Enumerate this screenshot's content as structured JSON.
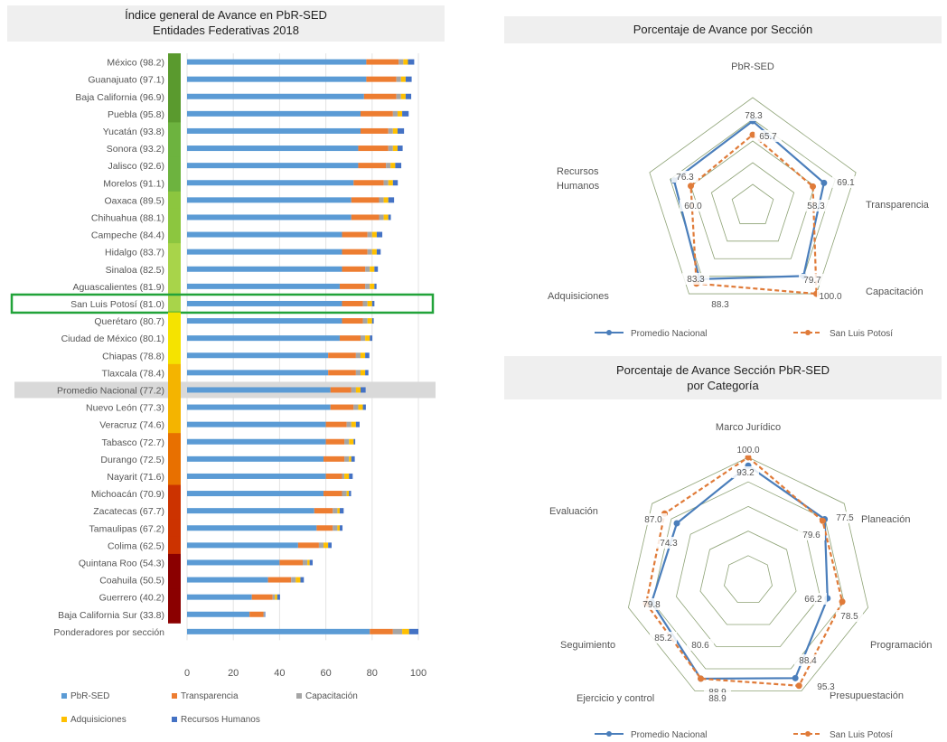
{
  "bar_chart": {
    "title_line1": "Índice general de Avance en PbR-SED",
    "title_line2": "Entidades Federativas 2018",
    "x_ticks": [
      "0",
      "20",
      "40",
      "60",
      "80",
      "100"
    ],
    "legend": [
      "PbR-SED",
      "Transparencia",
      "Capacitación",
      "Adquisiciones",
      "Recursos Humanos"
    ],
    "colors": {
      "PbR-SED": "#5b9bd5",
      "Transparencia": "#ed7d31",
      "Capacitación": "#a5a5a5",
      "Adquisiciones": "#ffc000",
      "Recursos Humanos": "#4472c4"
    }
  },
  "chart_data": [
    {
      "type": "bar",
      "orientation": "horizontal",
      "stacked": true,
      "xlim": [
        0,
        100
      ],
      "categories": [
        "México (98.2)",
        "Guanajuato (97.1)",
        "Baja California (96.9)",
        "Puebla (95.8)",
        "Yucatán (93.8)",
        "Sonora (93.2)",
        "Jalisco (92.6)",
        "Morelos (91.1)",
        "Oaxaca (89.5)",
        "Chihuahua (88.1)",
        "Campeche (84.4)",
        "Hidalgo (83.7)",
        "Sinaloa (82.5)",
        "Aguascalientes (81.9)",
        "San Luis Potosí (81.0)",
        "Querétaro (80.7)",
        "Ciudad de México (80.1)",
        "Chiapas (78.8)",
        "Tlaxcala (78.4)",
        "Promedio Nacional (77.2)",
        "Nuevo León (77.3)",
        "Veracruz (74.6)",
        "Tabasco (72.7)",
        "Durango (72.5)",
        "Nayarit (71.6)",
        "Michoacán (70.9)",
        "Zacatecas (67.7)",
        "Tamaulipas (67.2)",
        "Colima (62.5)",
        "Quintana Roo (54.3)",
        "Coahuila (50.5)",
        "Guerrero (40.2)",
        "Baja California Sur (33.8)",
        "Ponderadores por sección"
      ],
      "series": [
        {
          "name": "PbR-SED",
          "values": [
            77.5,
            77.5,
            76.5,
            75,
            75,
            74,
            74,
            72,
            71,
            71,
            67,
            67,
            67,
            66,
            67,
            67,
            66,
            61,
            61,
            62,
            62,
            60,
            60,
            59,
            60,
            59,
            55,
            56,
            48,
            40,
            35,
            28,
            27,
            79
          ]
        },
        {
          "name": "Transparencia",
          "values": [
            14,
            13,
            14,
            14,
            12,
            13,
            12,
            13,
            12,
            12,
            11,
            11,
            10,
            11,
            9,
            9,
            9,
            12,
            12,
            9,
            10,
            9,
            8,
            9,
            7,
            8,
            8,
            7,
            9,
            10,
            10,
            9,
            6,
            10
          ]
        },
        {
          "name": "Capacitación",
          "values": [
            2,
            2,
            2,
            2,
            2,
            2,
            2,
            2,
            2,
            2,
            2,
            2,
            2,
            2,
            2,
            2,
            2,
            2,
            2,
            2,
            2,
            2,
            2,
            2,
            1,
            2,
            2,
            2,
            2,
            2,
            2,
            1,
            0.5,
            4
          ]
        },
        {
          "name": "Adquisiciones",
          "values": [
            2,
            2,
            2,
            2,
            2,
            2,
            2,
            2,
            2,
            2,
            2,
            2,
            2,
            2,
            2,
            2,
            2,
            2,
            2,
            2,
            2,
            2,
            2,
            1,
            2,
            1,
            1,
            1,
            2,
            1,
            2,
            1,
            0,
            3
          ]
        },
        {
          "name": "Recursos Humanos",
          "values": [
            2.7,
            2.6,
            2.4,
            2.8,
            2.8,
            2.2,
            2.6,
            2.1,
            2.5,
            1.1,
            2.4,
            1.7,
            1.5,
            0.9,
            1,
            0.7,
            1.1,
            1.8,
            1.4,
            2.2,
            1.3,
            1.6,
            0.7,
            1.5,
            1.6,
            0.9,
            1.7,
            1.2,
            1.5,
            1.3,
            1.5,
            1.2,
            0.3,
            4
          ]
        }
      ],
      "color_scale": [
        "#5a9a2e",
        "#6db33f",
        "#8cc63f",
        "#a8d44a",
        "#f5e300",
        "#f4b400",
        "#e87000",
        "#cc3300",
        "#8b0000"
      ],
      "highlight": {
        "category": "San Luis Potosí (81.0)",
        "outline_color": "#22a33a"
      },
      "shaded_category": "Promedio Nacional (77.2)"
    },
    {
      "type": "radar",
      "title": "Porcentaje de Avance por Sección",
      "axes": [
        "PbR-SED",
        "Transparencia",
        "Capacitación",
        "Adquisiciones",
        "Recursos Humanos"
      ],
      "axis_labels": [
        [
          "PbR-SED"
        ],
        [
          "Transparencia"
        ],
        [
          "Capacitación"
        ],
        [
          "Adquisiciones"
        ],
        [
          "Recursos",
          "Humanos"
        ]
      ],
      "rlim": [
        0,
        100
      ],
      "series": [
        {
          "name": "Promedio Nacional",
          "color": "#4a7ebb",
          "values": [
            78.3,
            69.1,
            79.7,
            83.3,
            76.3
          ],
          "labels": [
            "78.3",
            "69.1",
            "79.7",
            "83.3",
            "76.3"
          ]
        },
        {
          "name": "San Luis Potosí",
          "color": "#e07b39",
          "values": [
            65.7,
            58.3,
            100.0,
            88.3,
            60.0
          ],
          "labels": [
            "65.7",
            "58.3",
            "100.0",
            "88.3",
            "60.0"
          ]
        }
      ],
      "legend": [
        "Promedio Nacional",
        "San Luis Potosí"
      ]
    },
    {
      "type": "radar",
      "title": "Porcentaje de Avance Sección PbR-SED",
      "subtitle": "por Categoría",
      "axes": [
        "Marco Jurídico",
        "Planeación",
        "Programación",
        "Presupuestación",
        "Ejercicio y control",
        "Seguimiento",
        "Evaluación"
      ],
      "axis_labels": [
        [
          "Marco Jurídico"
        ],
        [
          "Planeación"
        ],
        [
          "Programación"
        ],
        [
          "Presupuestación"
        ],
        [
          "Ejercicio y control"
        ],
        [
          "Seguimiento"
        ],
        [
          "Evaluación"
        ]
      ],
      "rlim": [
        0,
        100
      ],
      "series": [
        {
          "name": "Promedio Nacional",
          "color": "#4a7ebb",
          "values": [
            93.2,
            79.6,
            66.2,
            88.4,
            88.9,
            80.6,
            74.3
          ],
          "labels": [
            "93.2",
            "79.6",
            "66.2",
            "88.4",
            "88.9",
            "80.6",
            "74.3"
          ]
        },
        {
          "name": "San Luis Potosí",
          "color": "#e07b39",
          "values": [
            100.0,
            77.5,
            78.5,
            95.3,
            88.9,
            85.2,
            87.0
          ],
          "labels": [
            "100.0",
            "77.5",
            "78.5",
            "95.3",
            "88.9",
            "85.2",
            "87.0"
          ]
        },
        {
          "name": "",
          "color": "#4a7ebb",
          "values": [
            null,
            null,
            null,
            null,
            null,
            79.8,
            null
          ],
          "labels": [
            "",
            "",
            "",
            "",
            "",
            "79.8",
            ""
          ]
        }
      ],
      "legend": [
        "Promedio Nacional",
        "San Luis Potosí"
      ]
    }
  ]
}
